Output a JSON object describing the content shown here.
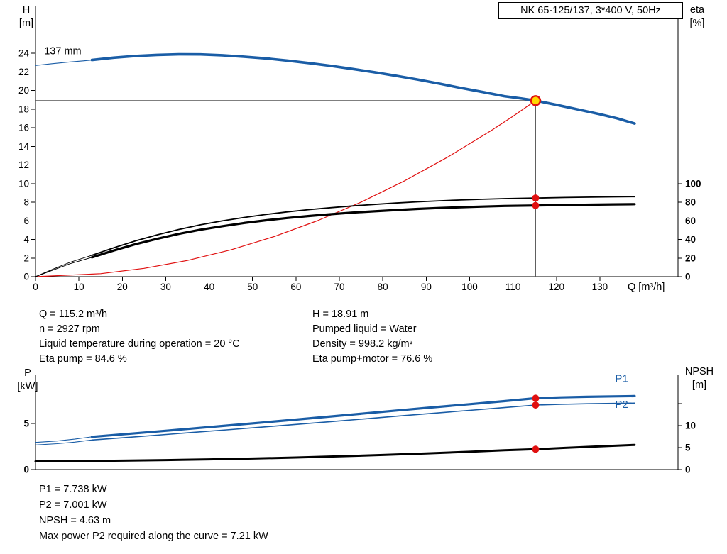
{
  "title_box": "NK 65-125/137, 3*400 V, 50Hz",
  "axis_labels": {
    "h_top": "H",
    "h_unit": "[m]",
    "eta_top": "eta",
    "eta_unit": "[%]",
    "q": "Q [m³/h]",
    "p_top": "P",
    "p_unit": "[kW]",
    "npsh_top": "NPSH",
    "npsh_unit": "[m]"
  },
  "info_top": {
    "left": [
      "Q = 115.2 m³/h",
      "n = 2927 rpm",
      "Liquid temperature during operation = 20 °C",
      "Eta pump = 84.6 %"
    ],
    "right": [
      "H = 18.91 m",
      "Pumped liquid = Water",
      "Density = 998.2 kg/m³",
      "Eta pump+motor = 76.6 %"
    ]
  },
  "info_bottom": [
    "P1 = 7.738 kW",
    "P2 = 7.001 kW",
    "NPSH = 4.63 m",
    "Max power P2 required along the curve = 7.21 kW"
  ],
  "colors": {
    "curve_blue": "#1a5da6",
    "curve_red": "#e01010",
    "curve_black": "#000000",
    "duty_fill": "#ffd800",
    "duty_stroke": "#e01010",
    "marker_red": "#e01010",
    "guide": "#555555"
  },
  "chart_data": [
    {
      "id": "qh",
      "type": "line",
      "title": "NK 65-125/137, 3*400 V, 50Hz",
      "xlabel": "Q [m³/h]",
      "ylabel_left": "H [m]",
      "ylabel_right": "eta [%]",
      "xlim": [
        0,
        148
      ],
      "ylim_left": [
        0,
        24
      ],
      "ylim_right": [
        0,
        100
      ],
      "grid": false,
      "x_ticks": [
        0,
        10,
        20,
        30,
        40,
        50,
        60,
        70,
        80,
        90,
        100,
        110,
        120,
        130
      ],
      "x_tick_labels": [
        "0",
        "10",
        "20",
        "30",
        "40",
        "50",
        "60",
        "70",
        "80",
        "90",
        "100",
        "110",
        "120",
        "130"
      ],
      "y_ticks_left": [
        0,
        2,
        4,
        6,
        8,
        10,
        12,
        14,
        16,
        18,
        20,
        22,
        24
      ],
      "y_tick_labels_left": [
        "0",
        "2",
        "4",
        "6",
        "8",
        "10",
        "12",
        "14",
        "16",
        "18",
        "20",
        "22",
        "24"
      ],
      "y_ticks_right": [
        0,
        20,
        40,
        60,
        80,
        100
      ],
      "y_tick_labels_right": [
        "0",
        "20",
        "40",
        "60",
        "80",
        "100"
      ],
      "duty_point": {
        "q": 115.2,
        "h": 18.91,
        "eta_pump": 84.6,
        "eta_pump_motor": 76.6
      },
      "series": [
        {
          "name": "head-curve-min-flow",
          "axis": "left",
          "color": "curve_blue",
          "width": 1.2,
          "points": [
            [
              0,
              22.68
            ],
            [
              4,
              22.88
            ],
            [
              8,
              23.06
            ],
            [
              11,
              23.18
            ],
            [
              13,
              23.27
            ]
          ]
        },
        {
          "name": "head-curve-137mm",
          "axis": "left",
          "color": "curve_blue",
          "width": 3.6,
          "points": [
            [
              13,
              23.27
            ],
            [
              18,
              23.52
            ],
            [
              23,
              23.7
            ],
            [
              28,
              23.82
            ],
            [
              33,
              23.88
            ],
            [
              38,
              23.87
            ],
            [
              43,
              23.78
            ],
            [
              48,
              23.63
            ],
            [
              53,
              23.44
            ],
            [
              58,
              23.21
            ],
            [
              63,
              22.94
            ],
            [
              68,
              22.64
            ],
            [
              73,
              22.31
            ],
            [
              78,
              21.96
            ],
            [
              83,
              21.58
            ],
            [
              88,
              21.17
            ],
            [
              93,
              20.73
            ],
            [
              98,
              20.27
            ],
            [
              103,
              19.83
            ],
            [
              108,
              19.38
            ],
            [
              112,
              19.13
            ],
            [
              115.2,
              18.91
            ],
            [
              120,
              18.45
            ],
            [
              125,
              17.95
            ],
            [
              130,
              17.45
            ],
            [
              134,
              17.0
            ],
            [
              138,
              16.45
            ]
          ]
        },
        {
          "name": "system-curve",
          "axis": "left",
          "color": "curve_red",
          "width": 1.2,
          "points": [
            [
              0,
              0
            ],
            [
              15,
              0.32
            ],
            [
              25,
              0.89
            ],
            [
              35,
              1.74
            ],
            [
              45,
              2.88
            ],
            [
              55,
              4.31
            ],
            [
              65,
              6.02
            ],
            [
              75,
              8.01
            ],
            [
              85,
              10.29
            ],
            [
              95,
              12.85
            ],
            [
              105,
              15.7
            ],
            [
              110,
              17.23
            ],
            [
              115.2,
              18.91
            ]
          ]
        },
        {
          "name": "eta-pump-min-flow",
          "axis": "right",
          "color": "curve_black",
          "width": 1,
          "points": [
            [
              0,
              0
            ],
            [
              4,
              8
            ],
            [
              8,
              15.5
            ],
            [
              13,
              23
            ]
          ]
        },
        {
          "name": "eta-pump",
          "axis": "right",
          "color": "curve_black",
          "width": 1.8,
          "points": [
            [
              13,
              23
            ],
            [
              18,
              31
            ],
            [
              23,
              38.5
            ],
            [
              28,
              45
            ],
            [
              33,
              50.8
            ],
            [
              38,
              55.8
            ],
            [
              43,
              60
            ],
            [
              48,
              63.7
            ],
            [
              53,
              66.9
            ],
            [
              58,
              69.7
            ],
            [
              63,
              72.1
            ],
            [
              68,
              74.2
            ],
            [
              73,
              76.1
            ],
            [
              78,
              77.7
            ],
            [
              83,
              79.2
            ],
            [
              88,
              80.5
            ],
            [
              93,
              81.6
            ],
            [
              98,
              82.5
            ],
            [
              103,
              83.3
            ],
            [
              108,
              84
            ],
            [
              115.2,
              84.6
            ],
            [
              122,
              85.2
            ],
            [
              128,
              85.6
            ],
            [
              133,
              85.9
            ],
            [
              138,
              86.1
            ]
          ]
        },
        {
          "name": "eta-pump-motor-min-flow",
          "axis": "right",
          "color": "curve_black",
          "width": 1,
          "points": [
            [
              0,
              0
            ],
            [
              4,
              7
            ],
            [
              8,
              14
            ],
            [
              13,
              20.8
            ]
          ]
        },
        {
          "name": "eta-pump-motor",
          "axis": "right",
          "color": "curve_black",
          "width": 3.2,
          "points": [
            [
              13,
              20.8
            ],
            [
              18,
              28.1
            ],
            [
              23,
              34.9
            ],
            [
              28,
              40.7
            ],
            [
              33,
              46
            ],
            [
              38,
              50.5
            ],
            [
              43,
              54.3
            ],
            [
              48,
              57.7
            ],
            [
              53,
              60.6
            ],
            [
              58,
              63.1
            ],
            [
              63,
              65.3
            ],
            [
              68,
              67.2
            ],
            [
              73,
              68.9
            ],
            [
              78,
              70.3
            ],
            [
              83,
              71.7
            ],
            [
              88,
              72.9
            ],
            [
              93,
              73.9
            ],
            [
              98,
              74.7
            ],
            [
              103,
              75.4
            ],
            [
              108,
              76.1
            ],
            [
              115.2,
              76.6
            ],
            [
              122,
              77.1
            ],
            [
              128,
              77.5
            ],
            [
              133,
              77.8
            ],
            [
              138,
              78
            ]
          ]
        }
      ],
      "guides": [
        {
          "type": "h",
          "axis": "left",
          "v": 18.91,
          "q1": 0,
          "q2": 115.2
        },
        {
          "type": "v",
          "axis": "left",
          "q": 115.2,
          "v1": 0,
          "v2": 18.91
        }
      ],
      "markers": [
        {
          "type": "duty",
          "axis": "left",
          "q": 115.2,
          "v": 18.91
        },
        {
          "type": "dot",
          "axis": "right",
          "q": 115.2,
          "v": 84.6
        },
        {
          "type": "dot",
          "axis": "right",
          "q": 115.2,
          "v": 76.6
        }
      ],
      "labels": [
        {
          "text": "137 mm",
          "q": 2,
          "v": 23.9,
          "axis": "left",
          "color": "curve_black",
          "size": 14.5
        }
      ]
    },
    {
      "id": "power",
      "type": "line",
      "title": "",
      "xlabel": "",
      "ylabel_left": "P [kW]",
      "ylabel_right": "NPSH [m]",
      "xlim": [
        0,
        148
      ],
      "ylim_left": [
        0,
        10.3
      ],
      "ylim_right": [
        0,
        21.6
      ],
      "grid": false,
      "x_ticks": [],
      "x_tick_labels": [],
      "y_ticks_left": [
        0,
        5
      ],
      "y_tick_labels_left": [
        "0",
        "5"
      ],
      "y_ticks_right": [
        0,
        5,
        10,
        15
      ],
      "y_tick_labels_right": [
        "0",
        "5",
        "10",
        ""
      ],
      "duty_point": {
        "q": 115.2,
        "p1": 7.738,
        "p2": 7.001,
        "npsh": 4.63
      },
      "series": [
        {
          "name": "p1-min-flow",
          "axis": "left",
          "color": "curve_blue",
          "width": 1.1,
          "points": [
            [
              0,
              2.95
            ],
            [
              5,
              3.1
            ],
            [
              9,
              3.3
            ],
            [
              13,
              3.55
            ]
          ]
        },
        {
          "name": "p1-curve",
          "axis": "left",
          "color": "curve_blue",
          "width": 3.2,
          "points": [
            [
              13,
              3.55
            ],
            [
              20,
              3.82
            ],
            [
              28,
              4.13
            ],
            [
              36,
              4.45
            ],
            [
              44,
              4.77
            ],
            [
              52,
              5.09
            ],
            [
              60,
              5.42
            ],
            [
              68,
              5.76
            ],
            [
              76,
              6.1
            ],
            [
              84,
              6.44
            ],
            [
              92,
              6.77
            ],
            [
              100,
              7.09
            ],
            [
              108,
              7.42
            ],
            [
              115.2,
              7.74
            ],
            [
              121,
              7.83
            ],
            [
              127,
              7.89
            ],
            [
              133,
              7.94
            ],
            [
              138,
              7.97
            ]
          ]
        },
        {
          "name": "p2-min-flow",
          "axis": "left",
          "color": "curve_blue",
          "width": 1.1,
          "points": [
            [
              0,
              2.67
            ],
            [
              5,
              2.81
            ],
            [
              9,
              2.98
            ],
            [
              13,
              3.21
            ]
          ]
        },
        {
          "name": "p2-curve",
          "axis": "left",
          "color": "curve_blue",
          "width": 1.6,
          "points": [
            [
              13,
              3.21
            ],
            [
              20,
              3.45
            ],
            [
              28,
              3.73
            ],
            [
              36,
              4.02
            ],
            [
              44,
              4.31
            ],
            [
              52,
              4.6
            ],
            [
              60,
              4.9
            ],
            [
              68,
              5.2
            ],
            [
              76,
              5.51
            ],
            [
              84,
              5.82
            ],
            [
              92,
              6.12
            ],
            [
              100,
              6.42
            ],
            [
              108,
              6.72
            ],
            [
              115.2,
              7.0
            ],
            [
              121,
              7.08
            ],
            [
              127,
              7.14
            ],
            [
              133,
              7.18
            ],
            [
              138,
              7.21
            ]
          ]
        },
        {
          "name": "npsh-curve",
          "axis": "right",
          "color": "curve_black",
          "width": 3,
          "points": [
            [
              0,
              1.85
            ],
            [
              10,
              1.93
            ],
            [
              20,
              2.03
            ],
            [
              30,
              2.16
            ],
            [
              40,
              2.32
            ],
            [
              50,
              2.52
            ],
            [
              60,
              2.75
            ],
            [
              70,
              3.02
            ],
            [
              80,
              3.33
            ],
            [
              90,
              3.68
            ],
            [
              100,
              4.05
            ],
            [
              108,
              4.38
            ],
            [
              115.2,
              4.63
            ],
            [
              122,
              4.93
            ],
            [
              130,
              5.28
            ],
            [
              138,
              5.62
            ]
          ]
        }
      ],
      "guides": [],
      "markers": [
        {
          "type": "dot",
          "axis": "left",
          "q": 115.2,
          "v": 7.738
        },
        {
          "type": "dot",
          "axis": "left",
          "q": 115.2,
          "v": 7.001
        },
        {
          "type": "dot",
          "axis": "right",
          "q": 115.2,
          "v": 4.63
        }
      ],
      "labels": [
        {
          "text": "P1",
          "q": 133.5,
          "v": 9.5,
          "axis": "left",
          "color": "curve_blue",
          "size": 15
        },
        {
          "text": "P2",
          "q": 133.5,
          "v": 6.7,
          "axis": "left",
          "color": "curve_blue",
          "size": 15
        }
      ]
    }
  ]
}
